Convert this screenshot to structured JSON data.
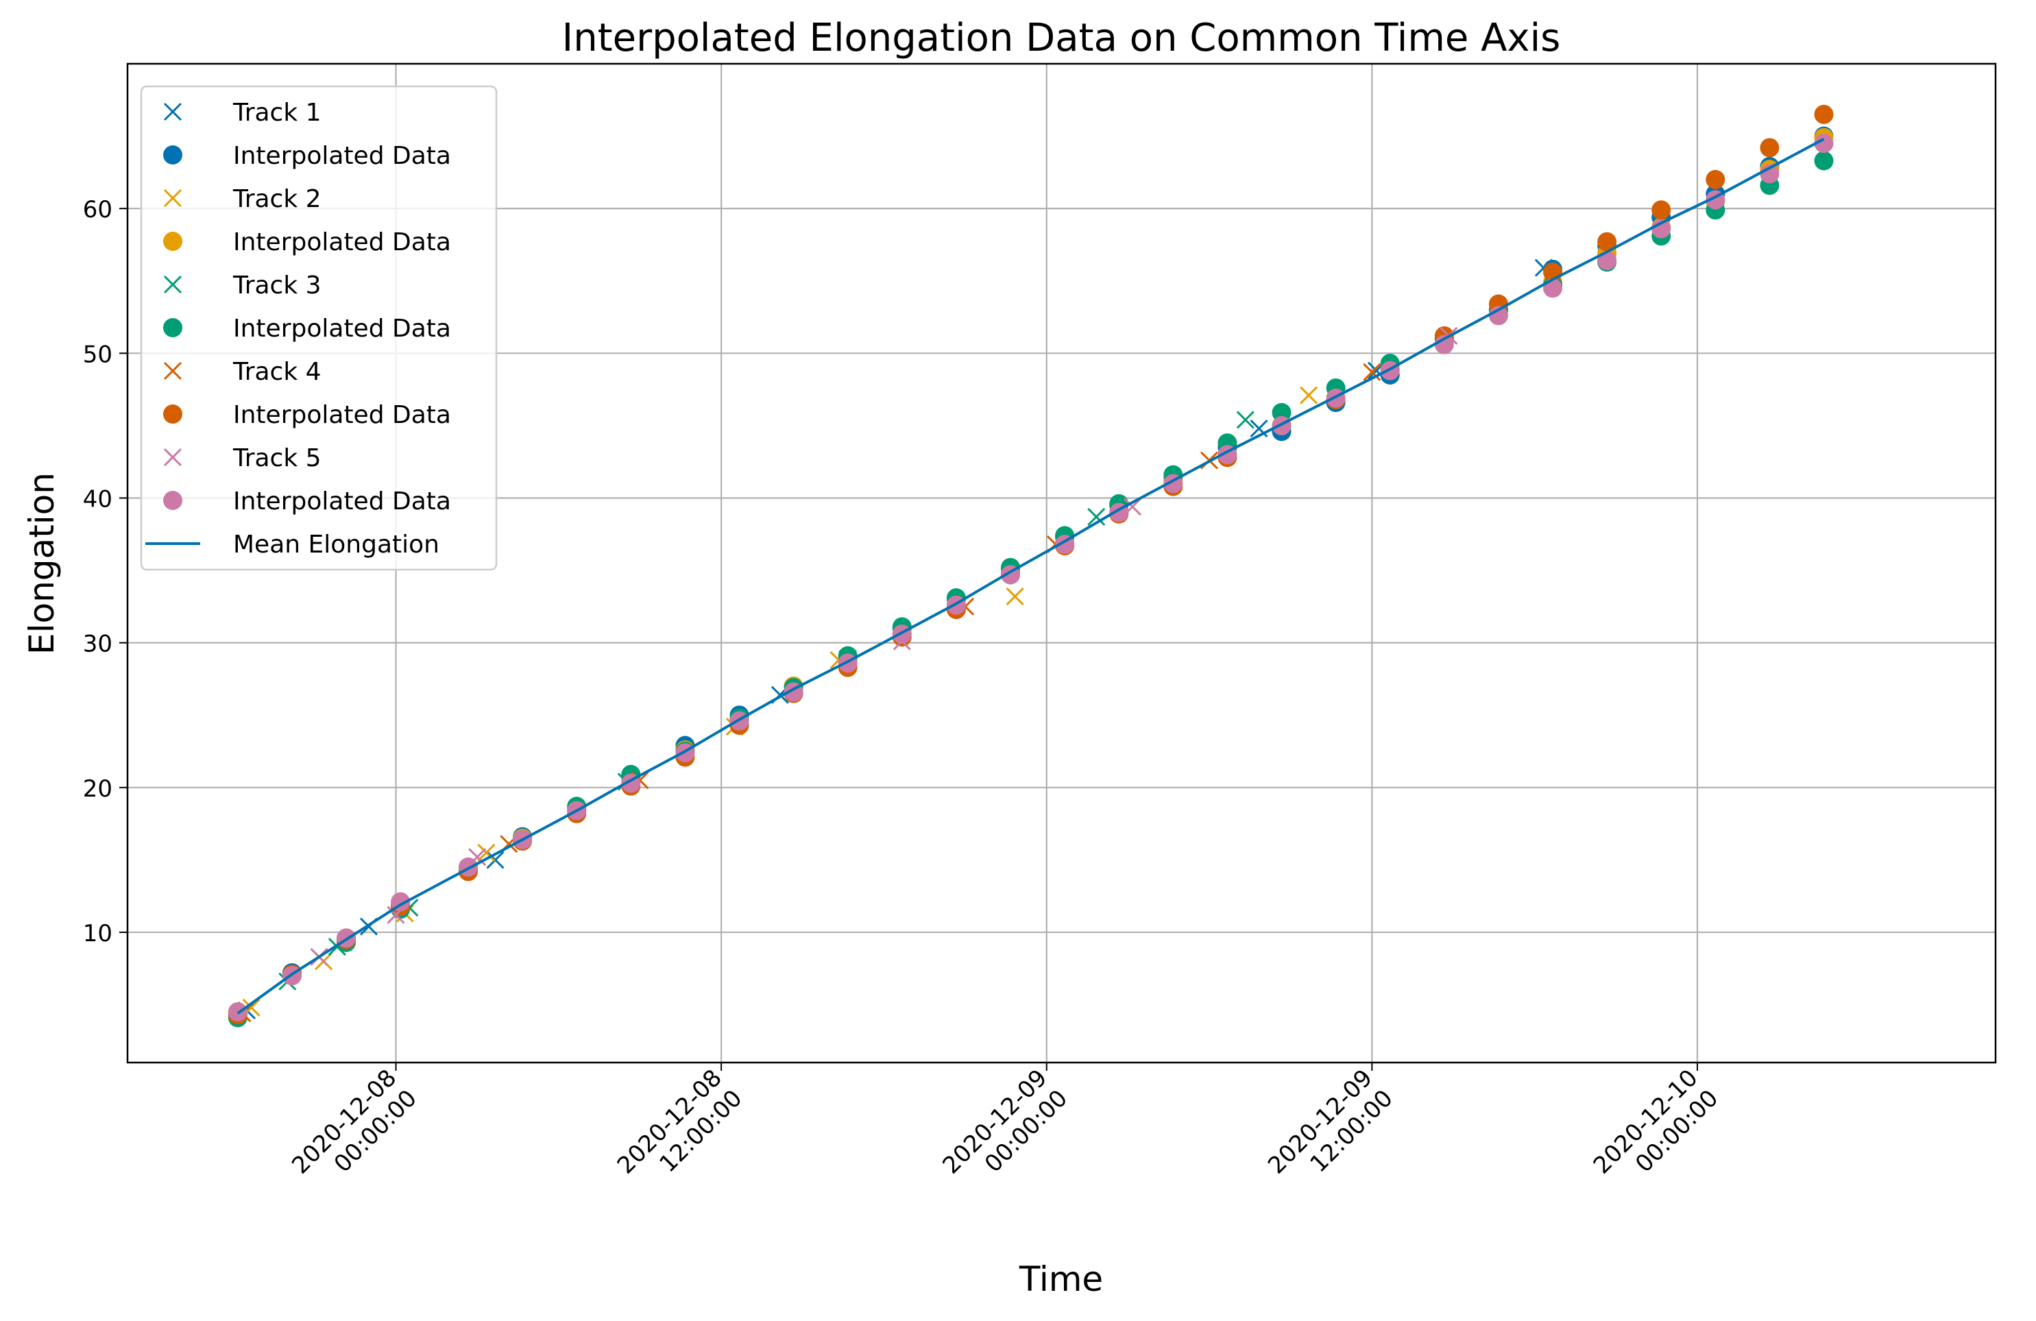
{
  "chart_data": {
    "type": "scatter",
    "title": "Interpolated Elongation Data on Common Time Axis",
    "xlabel": "Time",
    "ylabel": "Elongation",
    "xlim": [
      "2020-12-07 14:06",
      "2020-12-10 11:00"
    ],
    "ylim": [
      1,
      70
    ],
    "x_ticks": [
      {
        "value": "2020-12-08 00:00",
        "label_line1": "2020-12-08",
        "label_line2": "00:00:00"
      },
      {
        "value": "2020-12-08 12:00",
        "label_line1": "2020-12-08",
        "label_line2": "12:00:00"
      },
      {
        "value": "2020-12-09 00:00",
        "label_line1": "2020-12-09",
        "label_line2": "00:00:00"
      },
      {
        "value": "2020-12-09 12:00",
        "label_line1": "2020-12-09",
        "label_line2": "12:00:00"
      },
      {
        "value": "2020-12-10 00:00",
        "label_line1": "2020-12-10",
        "label_line2": "00:00:00"
      }
    ],
    "y_ticks": [
      10,
      20,
      30,
      40,
      50,
      60
    ],
    "grid": true,
    "legend_position": "top-left",
    "common_time": [
      "2020-12-07 18:10",
      "2020-12-07 20:10",
      "2020-12-07 22:10",
      "2020-12-08 00:10",
      "2020-12-08 02:40",
      "2020-12-08 04:40",
      "2020-12-08 06:40",
      "2020-12-08 08:40",
      "2020-12-08 10:40",
      "2020-12-08 12:40",
      "2020-12-08 14:40",
      "2020-12-08 16:40",
      "2020-12-08 18:40",
      "2020-12-08 20:40",
      "2020-12-08 22:40",
      "2020-12-09 00:40",
      "2020-12-09 02:40",
      "2020-12-09 04:40",
      "2020-12-09 06:40",
      "2020-12-09 08:40",
      "2020-12-09 10:40",
      "2020-12-09 12:40",
      "2020-12-09 14:40",
      "2020-12-09 16:40",
      "2020-12-09 18:40",
      "2020-12-09 20:40",
      "2020-12-09 22:40",
      "2020-12-10 00:40",
      "2020-12-10 02:40",
      "2020-12-10 04:40"
    ],
    "series": [
      {
        "name": "Track 1",
        "color": "#0072B2",
        "interpolated_label": "Interpolated Data",
        "raw": [
          {
            "x": "2020-12-07 18:30",
            "y": 4.6
          },
          {
            "x": "2020-12-07 23:00",
            "y": 10.4
          },
          {
            "x": "2020-12-08 03:40",
            "y": 15.0
          },
          {
            "x": "2020-12-08 14:10",
            "y": 26.4
          },
          {
            "x": "2020-12-09 07:50",
            "y": 44.8
          },
          {
            "x": "2020-12-09 12:10",
            "y": 48.8
          },
          {
            "x": "2020-12-09 18:20",
            "y": 55.9
          }
        ],
        "interpolated": [
          4.4,
          7.2,
          9.5,
          12.0,
          14.5,
          16.6,
          18.5,
          20.8,
          22.9,
          25.0,
          27.0,
          28.9,
          31.0,
          33.0,
          35.1,
          37.3,
          39.5,
          41.3,
          43.5,
          44.6,
          46.6,
          48.5,
          51.0,
          53.0,
          55.8,
          57.4,
          59.4,
          61.0,
          62.9,
          65.0
        ]
      },
      {
        "name": "Track 2",
        "color": "#E69F00",
        "interpolated_label": "Interpolated Data",
        "raw": [
          {
            "x": "2020-12-07 18:40",
            "y": 4.8
          },
          {
            "x": "2020-12-07 21:20",
            "y": 8.0
          },
          {
            "x": "2020-12-08 00:20",
            "y": 11.3
          },
          {
            "x": "2020-12-08 03:20",
            "y": 15.5
          },
          {
            "x": "2020-12-08 12:30",
            "y": 24.2
          },
          {
            "x": "2020-12-08 16:20",
            "y": 28.8
          },
          {
            "x": "2020-12-08 22:50",
            "y": 33.2
          },
          {
            "x": "2020-12-09 09:40",
            "y": 47.1
          }
        ],
        "interpolated": [
          4.5,
          7.1,
          9.6,
          11.9,
          14.4,
          16.5,
          18.4,
          20.5,
          22.6,
          24.6,
          27.0,
          28.8,
          30.6,
          33.0,
          34.8,
          36.9,
          39.0,
          41.2,
          43.0,
          45.0,
          46.9,
          48.9,
          51.0,
          52.9,
          54.9,
          56.9,
          58.7,
          60.5,
          62.7,
          64.9
        ]
      },
      {
        "name": "Track 3",
        "color": "#009E73",
        "interpolated_label": "Interpolated Data",
        "raw": [
          {
            "x": "2020-12-07 20:00",
            "y": 6.6
          },
          {
            "x": "2020-12-07 21:50",
            "y": 9.0
          },
          {
            "x": "2020-12-08 00:30",
            "y": 11.7
          },
          {
            "x": "2020-12-08 08:30",
            "y": 20.4
          },
          {
            "x": "2020-12-08 16:40",
            "y": 28.9
          },
          {
            "x": "2020-12-09 01:50",
            "y": 38.7
          },
          {
            "x": "2020-12-09 07:20",
            "y": 45.4
          }
        ],
        "interpolated": [
          4.1,
          7.0,
          9.3,
          11.6,
          14.3,
          16.4,
          18.7,
          20.9,
          22.5,
          24.8,
          26.9,
          29.1,
          31.1,
          33.1,
          35.2,
          37.4,
          39.6,
          41.6,
          43.8,
          45.9,
          47.6,
          49.3,
          51.0,
          53.0,
          54.7,
          56.3,
          58.1,
          59.9,
          61.6,
          63.3
        ]
      },
      {
        "name": "Track 4",
        "color": "#D55E00",
        "interpolated_label": "Interpolated Data",
        "raw": [
          {
            "x": "2020-12-07 18:20",
            "y": 4.4
          },
          {
            "x": "2020-12-08 04:10",
            "y": 16.1
          },
          {
            "x": "2020-12-08 09:00",
            "y": 20.5
          },
          {
            "x": "2020-12-08 21:00",
            "y": 32.5
          },
          {
            "x": "2020-12-09 00:20",
            "y": 36.8
          },
          {
            "x": "2020-12-09 06:00",
            "y": 42.6
          },
          {
            "x": "2020-12-09 12:00",
            "y": 48.7
          }
        ],
        "interpolated": [
          4.3,
          7.1,
          9.5,
          11.8,
          14.2,
          16.3,
          18.2,
          20.1,
          22.1,
          24.3,
          26.5,
          28.3,
          30.4,
          32.3,
          34.7,
          36.7,
          38.9,
          40.8,
          42.8,
          45.0,
          46.8,
          48.8,
          51.2,
          53.4,
          55.6,
          57.7,
          59.9,
          62.0,
          64.2,
          66.5
        ]
      },
      {
        "name": "Track 5",
        "color": "#CC79A7",
        "interpolated_label": "Interpolated Data",
        "raw": [
          {
            "x": "2020-12-07 21:10",
            "y": 8.3
          },
          {
            "x": "2020-12-08 00:00",
            "y": 11.2
          },
          {
            "x": "2020-12-08 03:00",
            "y": 15.2
          },
          {
            "x": "2020-12-08 18:40",
            "y": 30.1
          },
          {
            "x": "2020-12-09 03:10",
            "y": 39.4
          },
          {
            "x": "2020-12-09 14:50",
            "y": 51.2
          }
        ],
        "interpolated": [
          4.5,
          7.0,
          9.6,
          12.1,
          14.5,
          16.4,
          18.4,
          20.3,
          22.4,
          24.6,
          26.6,
          28.6,
          30.6,
          32.6,
          34.7,
          36.8,
          39.0,
          41.0,
          43.0,
          45.0,
          46.9,
          48.8,
          50.6,
          52.6,
          54.5,
          56.4,
          58.6,
          60.6,
          62.4,
          64.5
        ]
      }
    ],
    "mean_line": {
      "name": "Mean Elongation",
      "color": "#0072B2",
      "values": [
        4.4,
        7.1,
        9.5,
        11.9,
        14.4,
        16.4,
        18.4,
        20.5,
        22.5,
        24.7,
        26.8,
        28.7,
        30.7,
        32.7,
        34.9,
        37.0,
        39.2,
        41.2,
        43.2,
        45.1,
        47.0,
        48.9,
        51.0,
        53.0,
        55.1,
        57.0,
        59.0,
        60.8,
        62.8,
        64.8
      ]
    }
  }
}
